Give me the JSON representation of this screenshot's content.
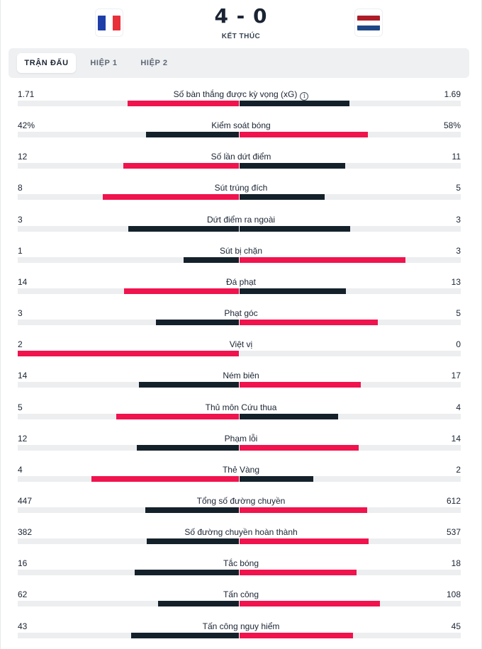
{
  "match": {
    "score": "4 - 0",
    "status": "KẾT THÚC",
    "home_flag": "france-flag",
    "away_flag": "netherlands-flag"
  },
  "tabs": [
    {
      "label": "TRẬN ĐẤU",
      "active": true
    },
    {
      "label": "HIỆP 1",
      "active": false
    },
    {
      "label": "HIỆP 2",
      "active": false
    }
  ],
  "colors": {
    "red": "#f0134d",
    "navy": "#14212b",
    "track": "#eceef0"
  },
  "stats": [
    {
      "label": "Số bàn thắng được kỳ vọng (xG)",
      "home": "1.71",
      "away": "1.69",
      "info": true
    },
    {
      "label": "Kiểm soát bóng",
      "home": "42%",
      "away": "58%"
    },
    {
      "label": "Số lần dứt điểm",
      "home": "12",
      "away": "11"
    },
    {
      "label": "Sút trúng đích",
      "home": "8",
      "away": "5"
    },
    {
      "label": "Dứt điểm ra ngoài",
      "home": "3",
      "away": "3"
    },
    {
      "label": "Sút bị chặn",
      "home": "1",
      "away": "3"
    },
    {
      "label": "Đá phạt",
      "home": "14",
      "away": "13"
    },
    {
      "label": "Phạt góc",
      "home": "3",
      "away": "5"
    },
    {
      "label": "Việt vị",
      "home": "2",
      "away": "0"
    },
    {
      "label": "Ném biên",
      "home": "14",
      "away": "17"
    },
    {
      "label": "Thủ môn Cứu thua",
      "home": "5",
      "away": "4"
    },
    {
      "label": "Phạm lỗi",
      "home": "12",
      "away": "14"
    },
    {
      "label": "Thẻ Vàng",
      "home": "4",
      "away": "2"
    },
    {
      "label": "Tổng số đường chuyền",
      "home": "447",
      "away": "612"
    },
    {
      "label": "Số đường chuyền hoàn thành",
      "home": "382",
      "away": "537"
    },
    {
      "label": "Tắc bóng",
      "home": "16",
      "away": "18"
    },
    {
      "label": "Tấn công",
      "home": "62",
      "away": "108"
    },
    {
      "label": "Tấn công nguy hiểm",
      "home": "43",
      "away": "45"
    }
  ]
}
